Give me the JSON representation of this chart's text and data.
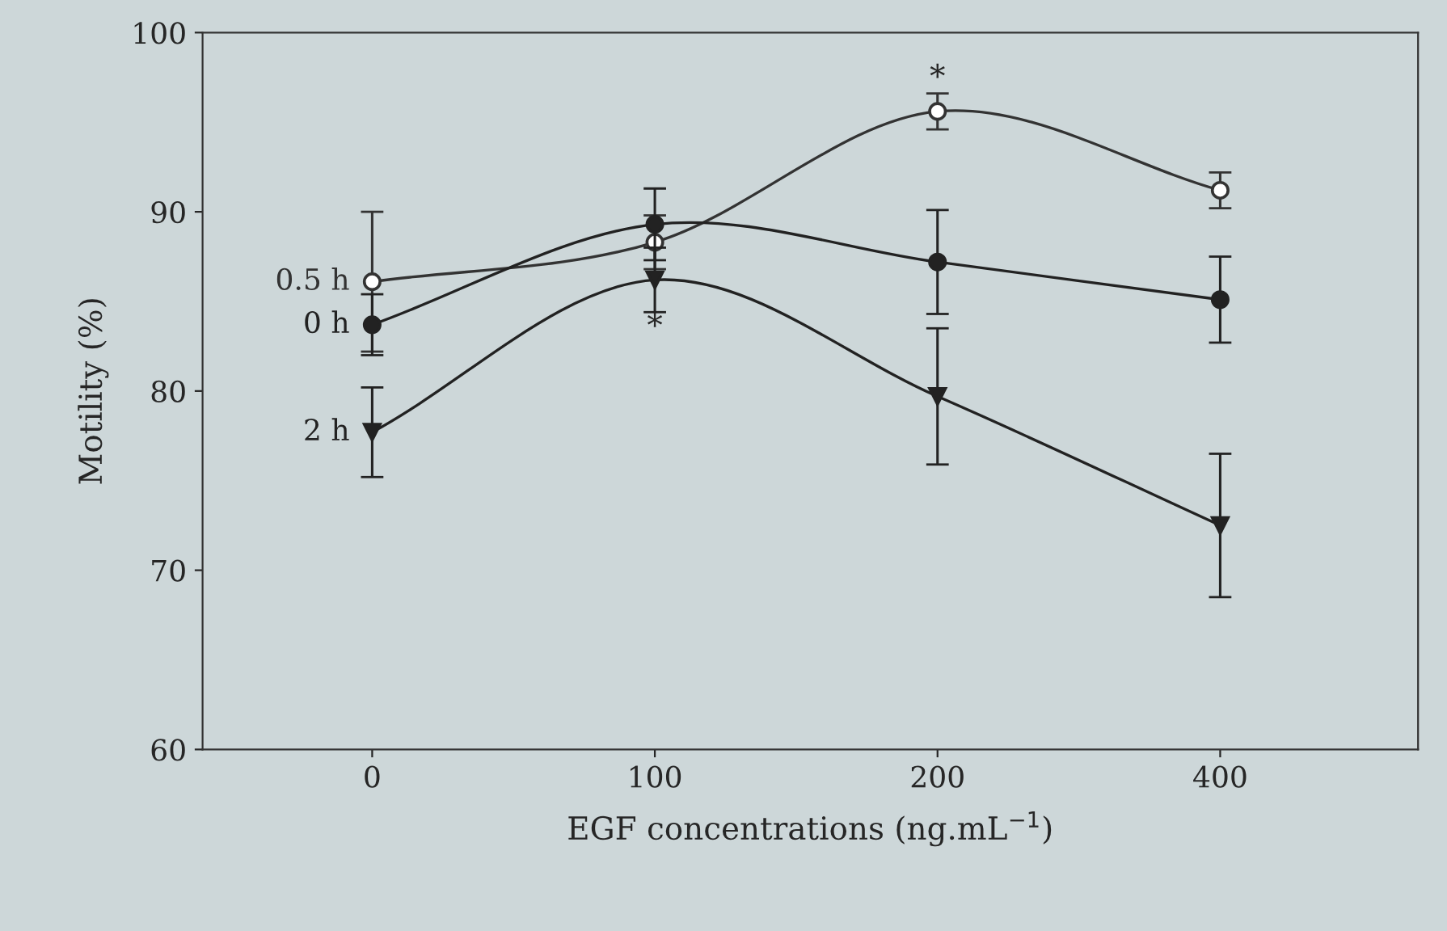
{
  "chart_data": {
    "type": "line",
    "xlabel": "EGF concentrations (ng.mL$^{−1}$)",
    "ylabel": "Motility (%)",
    "categories": [
      "0",
      "100",
      "200",
      "400"
    ],
    "ylim": [
      60,
      100
    ],
    "yticks": [
      60,
      70,
      80,
      90,
      100
    ],
    "grid": false,
    "legend": false,
    "series": [
      {
        "name": "0.5 h",
        "color": "#333333",
        "marker": "circle",
        "colors": [
          "#ffffff",
          "#ffffff",
          "#ffffff",
          "#ffffff"
        ],
        "values": [
          86.1,
          88.3,
          95.6,
          91.2
        ],
        "errors": [
          3.9,
          1.5,
          1,
          1
        ]
      },
      {
        "name": "0 h",
        "color": "#222222",
        "marker": "circle",
        "values": [
          83.7,
          89.3,
          87.2,
          85.1
        ],
        "errors": [
          1.7,
          2,
          2.9,
          2.4
        ]
      },
      {
        "name": "2 h",
        "color": "#222222",
        "marker": "triangle",
        "values": [
          77.7,
          86.2,
          79.7,
          72.5
        ],
        "errors": [
          2.5,
          1.8,
          3.8,
          4
        ]
      }
    ],
    "annotations": [
      {
        "text": "*",
        "x": "100",
        "y": 86.2
      },
      {
        "text": "*",
        "x": "200",
        "y": 95.6
      }
    ]
  }
}
